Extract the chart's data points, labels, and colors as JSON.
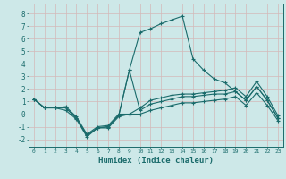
{
  "xlabel": "Humidex (Indice chaleur)",
  "background_color": "#cde8e8",
  "grid_color": "#b8d8d8",
  "line_color": "#1a6b6b",
  "xlim": [
    -0.5,
    23.5
  ],
  "ylim": [
    -2.6,
    8.8
  ],
  "xticks": [
    0,
    1,
    2,
    3,
    4,
    5,
    6,
    7,
    8,
    9,
    10,
    11,
    12,
    13,
    14,
    15,
    16,
    17,
    18,
    19,
    20,
    21,
    22,
    23
  ],
  "yticks": [
    -2,
    -1,
    0,
    1,
    2,
    3,
    4,
    5,
    6,
    7,
    8
  ],
  "line_peak_y": [
    1.2,
    0.5,
    0.5,
    0.5,
    -0.3,
    -1.7,
    -1.1,
    -1.0,
    -0.1,
    3.5,
    6.5,
    6.8,
    7.2,
    7.5,
    7.8,
    4.4,
    3.5,
    2.8,
    2.5,
    1.8,
    1.1,
    2.2,
    1.1,
    -0.3
  ],
  "line_mid_y": [
    1.2,
    0.5,
    0.5,
    0.5,
    -0.3,
    -1.7,
    -1.1,
    -1.0,
    -0.1,
    3.5,
    0.3,
    0.8,
    1.0,
    1.2,
    1.4,
    1.4,
    1.5,
    1.6,
    1.6,
    1.8,
    1.1,
    2.2,
    1.1,
    -0.3
  ],
  "line_low_y": [
    1.2,
    0.5,
    0.5,
    0.3,
    -0.4,
    -1.8,
    -1.1,
    -1.1,
    -0.2,
    0.0,
    0.0,
    0.3,
    0.5,
    0.7,
    0.9,
    0.9,
    1.0,
    1.1,
    1.2,
    1.4,
    0.7,
    1.7,
    0.7,
    -0.5
  ],
  "line_hi_y": [
    1.2,
    0.5,
    0.5,
    0.6,
    -0.2,
    -1.6,
    -1.0,
    -0.9,
    0.0,
    0.0,
    0.5,
    1.1,
    1.3,
    1.5,
    1.6,
    1.6,
    1.7,
    1.8,
    1.9,
    2.1,
    1.4,
    2.6,
    1.4,
    -0.1
  ]
}
